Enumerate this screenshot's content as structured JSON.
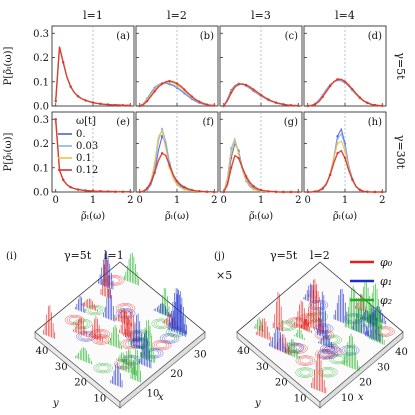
{
  "chart_data": {
    "type": "line",
    "grid_layout": "2 rows x 4 columns of distribution panels, plus two 3D surface panels below",
    "column_titles": [
      "l=1",
      "l=2",
      "l=3",
      "l=4"
    ],
    "row_labels": [
      "γ=5t",
      "γ=30t"
    ],
    "panel_labels": [
      "(a)",
      "(b)",
      "(c)",
      "(d)",
      "(e)",
      "(f)",
      "(g)",
      "(h)"
    ],
    "ylabel": "P[ρ̃ₗ(ω)]",
    "xlabel": "ρ̃ₗ(ω)",
    "x_ticks": [
      "0",
      "1",
      "2"
    ],
    "y_ticks": [
      "0.0",
      "0.1",
      "0.2",
      "0.3"
    ],
    "xlim": [
      -0.1,
      2.1
    ],
    "ylim": [
      0,
      0.33
    ],
    "reference_line_x": 1,
    "legend": {
      "title": "ω[t]",
      "placement": "inside panel (e)",
      "entries": [
        {
          "label": "0.",
          "color": "#4a63d9"
        },
        {
          "label": "0.03",
          "color": "#8ab0ec"
        },
        {
          "label": "0.1",
          "color": "#f0c13d"
        },
        {
          "label": "0.12",
          "color": "#d8332b"
        }
      ]
    },
    "series_colors": [
      "#4a63d9",
      "#8ab0ec",
      "#f0c13d",
      "#d8332b"
    ],
    "x": [
      0.0,
      0.1,
      0.2,
      0.3,
      0.4,
      0.5,
      0.6,
      0.7,
      0.8,
      0.9,
      1.0,
      1.1,
      1.2,
      1.3,
      1.4,
      1.5,
      1.6,
      1.7,
      1.8,
      1.9,
      2.0
    ],
    "panels": [
      {
        "series": [
          [
            0.02,
            0.24,
            0.18,
            0.12,
            0.08,
            0.055,
            0.04,
            0.03,
            0.023,
            0.018,
            0.014,
            0.011,
            0.009,
            0.007,
            0.006,
            0.005,
            0.004,
            0.004,
            0.003,
            0.003,
            0.002
          ],
          [
            0.02,
            0.24,
            0.18,
            0.12,
            0.08,
            0.055,
            0.04,
            0.03,
            0.023,
            0.018,
            0.014,
            0.011,
            0.009,
            0.007,
            0.006,
            0.005,
            0.004,
            0.004,
            0.003,
            0.003,
            0.002
          ],
          [
            0.02,
            0.245,
            0.18,
            0.12,
            0.08,
            0.055,
            0.04,
            0.03,
            0.023,
            0.018,
            0.014,
            0.011,
            0.009,
            0.007,
            0.006,
            0.005,
            0.004,
            0.004,
            0.003,
            0.003,
            0.002
          ],
          [
            0.02,
            0.245,
            0.18,
            0.12,
            0.08,
            0.055,
            0.04,
            0.03,
            0.023,
            0.018,
            0.014,
            0.011,
            0.009,
            0.007,
            0.006,
            0.005,
            0.004,
            0.004,
            0.003,
            0.003,
            0.002
          ]
        ]
      },
      {
        "series": [
          [
            0.0,
            0.01,
            0.03,
            0.055,
            0.075,
            0.088,
            0.094,
            0.094,
            0.09,
            0.084,
            0.075,
            0.064,
            0.052,
            0.04,
            0.029,
            0.02,
            0.013,
            0.008,
            0.005,
            0.003,
            0.002
          ],
          [
            0.0,
            0.01,
            0.03,
            0.053,
            0.073,
            0.087,
            0.094,
            0.096,
            0.093,
            0.087,
            0.078,
            0.067,
            0.055,
            0.043,
            0.032,
            0.022,
            0.015,
            0.009,
            0.005,
            0.003,
            0.002
          ],
          [
            0.0,
            0.008,
            0.025,
            0.045,
            0.065,
            0.082,
            0.093,
            0.099,
            0.099,
            0.095,
            0.087,
            0.076,
            0.063,
            0.049,
            0.036,
            0.025,
            0.016,
            0.01,
            0.006,
            0.003,
            0.002
          ],
          [
            0.0,
            0.006,
            0.02,
            0.04,
            0.06,
            0.078,
            0.091,
            0.1,
            0.103,
            0.1,
            0.093,
            0.082,
            0.068,
            0.053,
            0.039,
            0.027,
            0.018,
            0.011,
            0.006,
            0.003,
            0.002
          ]
        ]
      },
      {
        "series": [
          [
            0.0,
            0.03,
            0.065,
            0.085,
            0.092,
            0.09,
            0.083,
            0.073,
            0.062,
            0.051,
            0.041,
            0.032,
            0.024,
            0.018,
            0.013,
            0.009,
            0.006,
            0.004,
            0.003,
            0.002,
            0.001
          ],
          [
            0.0,
            0.028,
            0.062,
            0.083,
            0.091,
            0.09,
            0.084,
            0.075,
            0.064,
            0.053,
            0.043,
            0.033,
            0.025,
            0.019,
            0.013,
            0.009,
            0.006,
            0.004,
            0.003,
            0.002,
            0.001
          ],
          [
            0.0,
            0.024,
            0.058,
            0.08,
            0.09,
            0.091,
            0.086,
            0.077,
            0.066,
            0.055,
            0.044,
            0.034,
            0.026,
            0.019,
            0.014,
            0.01,
            0.007,
            0.004,
            0.003,
            0.002,
            0.001
          ],
          [
            0.0,
            0.022,
            0.055,
            0.078,
            0.089,
            0.091,
            0.087,
            0.079,
            0.068,
            0.057,
            0.046,
            0.036,
            0.027,
            0.02,
            0.014,
            0.01,
            0.007,
            0.004,
            0.003,
            0.002,
            0.001
          ]
        ]
      },
      {
        "series": [
          [
            0.0,
            0.003,
            0.01,
            0.025,
            0.045,
            0.068,
            0.087,
            0.1,
            0.106,
            0.104,
            0.095,
            0.081,
            0.064,
            0.047,
            0.032,
            0.02,
            0.012,
            0.007,
            0.004,
            0.002,
            0.001
          ],
          [
            0.0,
            0.003,
            0.01,
            0.024,
            0.044,
            0.066,
            0.086,
            0.1,
            0.107,
            0.105,
            0.096,
            0.082,
            0.065,
            0.048,
            0.033,
            0.021,
            0.013,
            0.007,
            0.004,
            0.002,
            0.001
          ],
          [
            0.0,
            0.002,
            0.008,
            0.02,
            0.04,
            0.062,
            0.084,
            0.101,
            0.11,
            0.109,
            0.1,
            0.085,
            0.067,
            0.049,
            0.033,
            0.021,
            0.013,
            0.007,
            0.004,
            0.002,
            0.001
          ],
          [
            0.0,
            0.002,
            0.007,
            0.018,
            0.037,
            0.06,
            0.082,
            0.1,
            0.11,
            0.11,
            0.101,
            0.087,
            0.069,
            0.051,
            0.035,
            0.022,
            0.013,
            0.007,
            0.004,
            0.002,
            0.001
          ]
        ]
      },
      {
        "series": [
          [
            0.3,
            0.09,
            0.05,
            0.03,
            0.02,
            0.014,
            0.01,
            0.008,
            0.006,
            0.005,
            0.004,
            0.003,
            0.003,
            0.002,
            0.002,
            0.002,
            0.001,
            0.001,
            0.001,
            0.001,
            0.001
          ],
          [
            0.29,
            0.09,
            0.05,
            0.03,
            0.02,
            0.014,
            0.01,
            0.008,
            0.006,
            0.005,
            0.004,
            0.003,
            0.003,
            0.002,
            0.002,
            0.002,
            0.001,
            0.001,
            0.001,
            0.001,
            0.001
          ],
          [
            0.29,
            0.09,
            0.05,
            0.03,
            0.02,
            0.014,
            0.01,
            0.008,
            0.006,
            0.005,
            0.004,
            0.003,
            0.003,
            0.002,
            0.002,
            0.002,
            0.001,
            0.001,
            0.001,
            0.001,
            0.001
          ],
          [
            0.3,
            0.09,
            0.05,
            0.03,
            0.02,
            0.014,
            0.01,
            0.008,
            0.006,
            0.005,
            0.004,
            0.003,
            0.003,
            0.002,
            0.002,
            0.002,
            0.001,
            0.001,
            0.001,
            0.001,
            0.001
          ]
        ]
      },
      {
        "series": [
          [
            0.0,
            0.003,
            0.01,
            0.03,
            0.08,
            0.17,
            0.23,
            0.2,
            0.12,
            0.07,
            0.04,
            0.025,
            0.015,
            0.01,
            0.006,
            0.004,
            0.003,
            0.002,
            0.001,
            0.001,
            0.0
          ],
          [
            0.0,
            0.003,
            0.012,
            0.035,
            0.1,
            0.21,
            0.26,
            0.21,
            0.12,
            0.065,
            0.035,
            0.02,
            0.012,
            0.008,
            0.005,
            0.003,
            0.002,
            0.001,
            0.001,
            0.0,
            0.0
          ],
          [
            0.0,
            0.004,
            0.015,
            0.045,
            0.12,
            0.23,
            0.25,
            0.18,
            0.1,
            0.055,
            0.03,
            0.018,
            0.01,
            0.006,
            0.004,
            0.002,
            0.002,
            0.001,
            0.001,
            0.0,
            0.0
          ],
          [
            0.0,
            0.004,
            0.015,
            0.04,
            0.08,
            0.13,
            0.16,
            0.15,
            0.11,
            0.07,
            0.045,
            0.03,
            0.02,
            0.013,
            0.008,
            0.005,
            0.003,
            0.002,
            0.001,
            0.001,
            0.0
          ]
        ]
      },
      {
        "series": [
          [
            0.0,
            0.04,
            0.14,
            0.2,
            0.17,
            0.1,
            0.055,
            0.03,
            0.016,
            0.009,
            0.005,
            0.003,
            0.002,
            0.001,
            0.001,
            0.0,
            0.0,
            0.0,
            0.0,
            0.0,
            0.0
          ],
          [
            0.0,
            0.06,
            0.18,
            0.22,
            0.16,
            0.09,
            0.045,
            0.022,
            0.011,
            0.006,
            0.003,
            0.002,
            0.001,
            0.001,
            0.0,
            0.0,
            0.0,
            0.0,
            0.0,
            0.0,
            0.0
          ],
          [
            0.0,
            0.05,
            0.16,
            0.21,
            0.16,
            0.095,
            0.05,
            0.026,
            0.013,
            0.007,
            0.004,
            0.002,
            0.001,
            0.001,
            0.0,
            0.0,
            0.0,
            0.0,
            0.0,
            0.0,
            0.0
          ],
          [
            0.0,
            0.03,
            0.1,
            0.15,
            0.14,
            0.1,
            0.065,
            0.04,
            0.024,
            0.014,
            0.008,
            0.005,
            0.003,
            0.002,
            0.001,
            0.0,
            0.0,
            0.0,
            0.0,
            0.0,
            0.0
          ]
        ]
      },
      {
        "series": [
          [
            0.0,
            0.0,
            0.002,
            0.005,
            0.012,
            0.03,
            0.07,
            0.14,
            0.23,
            0.26,
            0.2,
            0.11,
            0.05,
            0.02,
            0.008,
            0.003,
            0.001,
            0.0,
            0.0,
            0.0,
            0.0
          ],
          [
            0.0,
            0.0,
            0.002,
            0.005,
            0.012,
            0.03,
            0.07,
            0.14,
            0.22,
            0.24,
            0.19,
            0.11,
            0.055,
            0.022,
            0.009,
            0.003,
            0.001,
            0.0,
            0.0,
            0.0,
            0.0
          ],
          [
            0.0,
            0.0,
            0.002,
            0.005,
            0.013,
            0.032,
            0.075,
            0.14,
            0.2,
            0.21,
            0.17,
            0.1,
            0.05,
            0.02,
            0.008,
            0.003,
            0.001,
            0.0,
            0.0,
            0.0,
            0.0
          ],
          [
            0.0,
            0.0,
            0.002,
            0.006,
            0.015,
            0.035,
            0.07,
            0.12,
            0.16,
            0.17,
            0.14,
            0.09,
            0.05,
            0.022,
            0.009,
            0.003,
            0.001,
            0.0,
            0.0,
            0.0,
            0.0
          ]
        ]
      }
    ],
    "surface_panels": [
      {
        "tag": "(i)",
        "title": "γ=5t",
        "subtitle": "l=1",
        "multiplier": "",
        "x_ticks": [
          "10",
          "20",
          "30"
        ],
        "y_ticks": [
          "10",
          "20",
          "30",
          "40"
        ],
        "xlabel": "x",
        "ylabel": "y"
      },
      {
        "tag": "(j)",
        "title": "γ=5t",
        "subtitle": "l=2",
        "multiplier": "×5",
        "x_ticks": [
          "10",
          "20",
          "30",
          "40"
        ],
        "y_ticks": [
          "10",
          "20",
          "30",
          "40"
        ],
        "xlabel": "x",
        "ylabel": "y"
      }
    ],
    "surface_legend": [
      {
        "label": "φ₀",
        "color": "#e3201b"
      },
      {
        "label": "φ₁",
        "color": "#1a2dcc"
      },
      {
        "label": "φ₂",
        "color": "#19b21f"
      }
    ]
  }
}
